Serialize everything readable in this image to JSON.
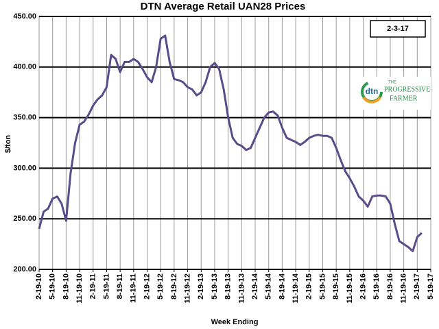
{
  "chart_data": {
    "type": "line",
    "title": "DTN Average Retail UAN28 Prices",
    "date_box": "2-3-17",
    "logo": {
      "mark": "dtn",
      "the": "THE",
      "name1": "PROGRESSIVE",
      "name2": "FARMER"
    },
    "x_label": "Week Ending",
    "y_label": "$/ton",
    "x": [
      "2-19-10",
      "3-19-10",
      "4-19-10",
      "5-19-10",
      "6-19-10",
      "7-19-10",
      "8-19-10",
      "9-19-10",
      "10-19-10",
      "11-19-10",
      "12-19-10",
      "1-19-11",
      "2-19-11",
      "3-19-11",
      "4-19-11",
      "5-19-11",
      "6-19-11",
      "7-19-11",
      "8-19-11",
      "9-19-11",
      "10-19-11",
      "11-19-11",
      "12-19-11",
      "1-19-12",
      "2-19-12",
      "3-19-12",
      "4-19-12",
      "5-19-12",
      "6-19-12",
      "7-19-12",
      "8-19-12",
      "9-19-12",
      "10-19-12",
      "11-19-12",
      "12-19-12",
      "1-19-13",
      "2-19-13",
      "3-19-13",
      "4-19-13",
      "5-19-13",
      "6-19-13",
      "7-19-13",
      "8-19-13",
      "9-19-13",
      "10-19-13",
      "11-19-13",
      "12-19-13",
      "1-19-14",
      "2-19-14",
      "3-19-14",
      "4-19-14",
      "5-19-14",
      "6-19-14",
      "7-19-14",
      "8-19-14",
      "9-19-14",
      "10-19-14",
      "11-19-14",
      "12-19-14",
      "1-19-15",
      "2-19-15",
      "3-19-15",
      "4-19-15",
      "5-19-15",
      "6-19-15",
      "7-19-15",
      "8-19-15",
      "9-19-15",
      "10-19-15",
      "11-19-15",
      "12-19-15",
      "1-19-16",
      "2-19-16",
      "3-19-16",
      "4-19-16",
      "5-19-16",
      "6-19-16",
      "7-19-16",
      "8-19-16",
      "9-19-16",
      "10-19-16",
      "11-19-16",
      "12-19-16",
      "1-19-17",
      "2-19-17",
      "3-19-17"
    ],
    "series": [
      {
        "name": "UAN28",
        "color": "#5a4b8a",
        "values": [
          240,
          257,
          260,
          270,
          272,
          265,
          248,
          295,
          325,
          343,
          346,
          353,
          362,
          368,
          372,
          380,
          412,
          408,
          395,
          405,
          405,
          408,
          405,
          398,
          390,
          385,
          400,
          428,
          431,
          405,
          388,
          387,
          385,
          380,
          378,
          372,
          375,
          385,
          400,
          404,
          398,
          378,
          350,
          330,
          324,
          322,
          318,
          320,
          330,
          340,
          350,
          355,
          356,
          352,
          340,
          330,
          328,
          326,
          323,
          326,
          330,
          332,
          333,
          332,
          332,
          330,
          320,
          308,
          297,
          290,
          282,
          272,
          268,
          262,
          272,
          273,
          273,
          272,
          265,
          245,
          228,
          225,
          222,
          218,
          232,
          236
        ]
      }
    ],
    "xlim": [
      "2-19-10",
      "5-19-17"
    ],
    "xticks": [
      "2-19-10",
      "5-19-10",
      "8-19-10",
      "11-19-10",
      "2-19-11",
      "5-19-11",
      "8-19-11",
      "11-19-11",
      "2-19-12",
      "5-19-12",
      "8-19-12",
      "11-19-12",
      "2-19-13",
      "5-19-13",
      "8-19-13",
      "11-19-13",
      "2-19-14",
      "5-19-14",
      "8-19-14",
      "11-19-14",
      "2-19-15",
      "5-19-15",
      "8-19-15",
      "11-19-15",
      "2-19-16",
      "5-19-16",
      "8-19-16",
      "11-19-16",
      "2-19-17",
      "5-19-17"
    ],
    "ylim": [
      200,
      450
    ],
    "yticks": [
      {
        "value": 200,
        "label": "200.00"
      },
      {
        "value": 250,
        "label": "250.00"
      },
      {
        "value": 300,
        "label": "300.00"
      },
      {
        "value": 350,
        "label": "350.00"
      },
      {
        "value": 400,
        "label": "400.00"
      },
      {
        "value": 450,
        "label": "450.00"
      }
    ],
    "grid": true
  }
}
